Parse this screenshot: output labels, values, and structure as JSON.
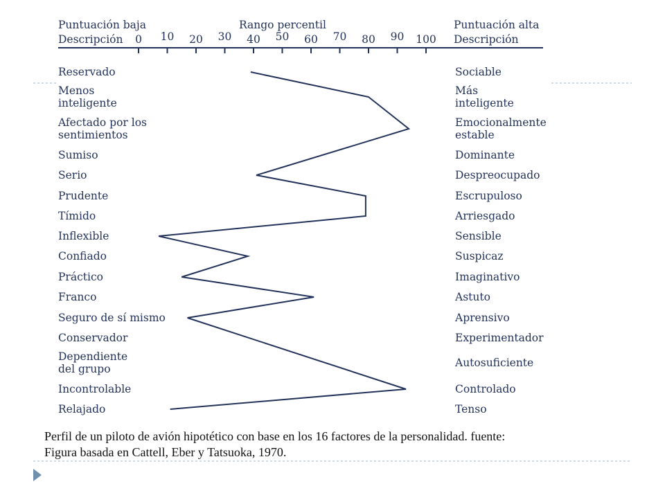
{
  "chart_data": {
    "type": "line",
    "header_left": [
      "Puntuación baja",
      "Descripción"
    ],
    "title": "Rango percentil",
    "header_right": [
      "Puntuación alta",
      "Descripción"
    ],
    "x_ticks": [
      0,
      10,
      20,
      30,
      40,
      50,
      60,
      70,
      80,
      90,
      100
    ],
    "xlim": [
      0,
      100
    ],
    "factors": [
      {
        "low": [
          "Reservado"
        ],
        "high": [
          "Sociable"
        ],
        "value": 39
      },
      {
        "low": [
          "Menos",
          "inteligente"
        ],
        "high": [
          "Más",
          "inteligente"
        ],
        "value": 80
      },
      {
        "low": [
          "Afectado por los",
          "sentimientos"
        ],
        "high": [
          "Emocionalmente",
          "estable"
        ],
        "value": 94
      },
      {
        "low": [
          "Sumiso"
        ],
        "high": [
          "Dominante"
        ],
        "value": null
      },
      {
        "low": [
          "Serio"
        ],
        "high": [
          "Despreocupado"
        ],
        "value": 41
      },
      {
        "low": [
          "Prudente"
        ],
        "high": [
          "Escrupuloso"
        ],
        "value": 79
      },
      {
        "low": [
          "Tímido"
        ],
        "high": [
          "Arriesgado"
        ],
        "value": 79
      },
      {
        "low": [
          "Inflexible"
        ],
        "high": [
          "Sensible"
        ],
        "value": 7
      },
      {
        "low": [
          "Confiado"
        ],
        "high": [
          "Suspicaz"
        ],
        "value": 38
      },
      {
        "low": [
          "Práctico"
        ],
        "high": [
          "Imaginativo"
        ],
        "value": 15
      },
      {
        "low": [
          "Franco"
        ],
        "high": [
          "Astuto"
        ],
        "value": 61
      },
      {
        "low": [
          "Seguro de sí mismo"
        ],
        "high": [
          "Aprensivo"
        ],
        "value": 17
      },
      {
        "low": [
          "Conservador"
        ],
        "high": [
          "Experimentador"
        ],
        "value": null
      },
      {
        "low": [
          "Dependiente",
          "del grupo"
        ],
        "high": [
          "Autosuficiente"
        ],
        "value": null
      },
      {
        "low": [
          "Incontrolable"
        ],
        "high": [
          "Controlado"
        ],
        "value": 93
      },
      {
        "low": [
          "Relajado"
        ],
        "high": [
          "Tenso"
        ],
        "value": 11
      }
    ],
    "line_color": "#22325a",
    "grid": false
  },
  "caption": {
    "line1": "Perfil de un piloto de avión hipotético con base en los 16 factores de la personalidad. fuente:",
    "line2": "Figura basada en Cattell, Eber y  Tatsuoka, 1970."
  },
  "colors": {
    "text": "#22325a",
    "divider": "#9fb8cc",
    "bullet": "#6e90ad"
  },
  "icons": {
    "bullet": "triangle-right-icon"
  }
}
